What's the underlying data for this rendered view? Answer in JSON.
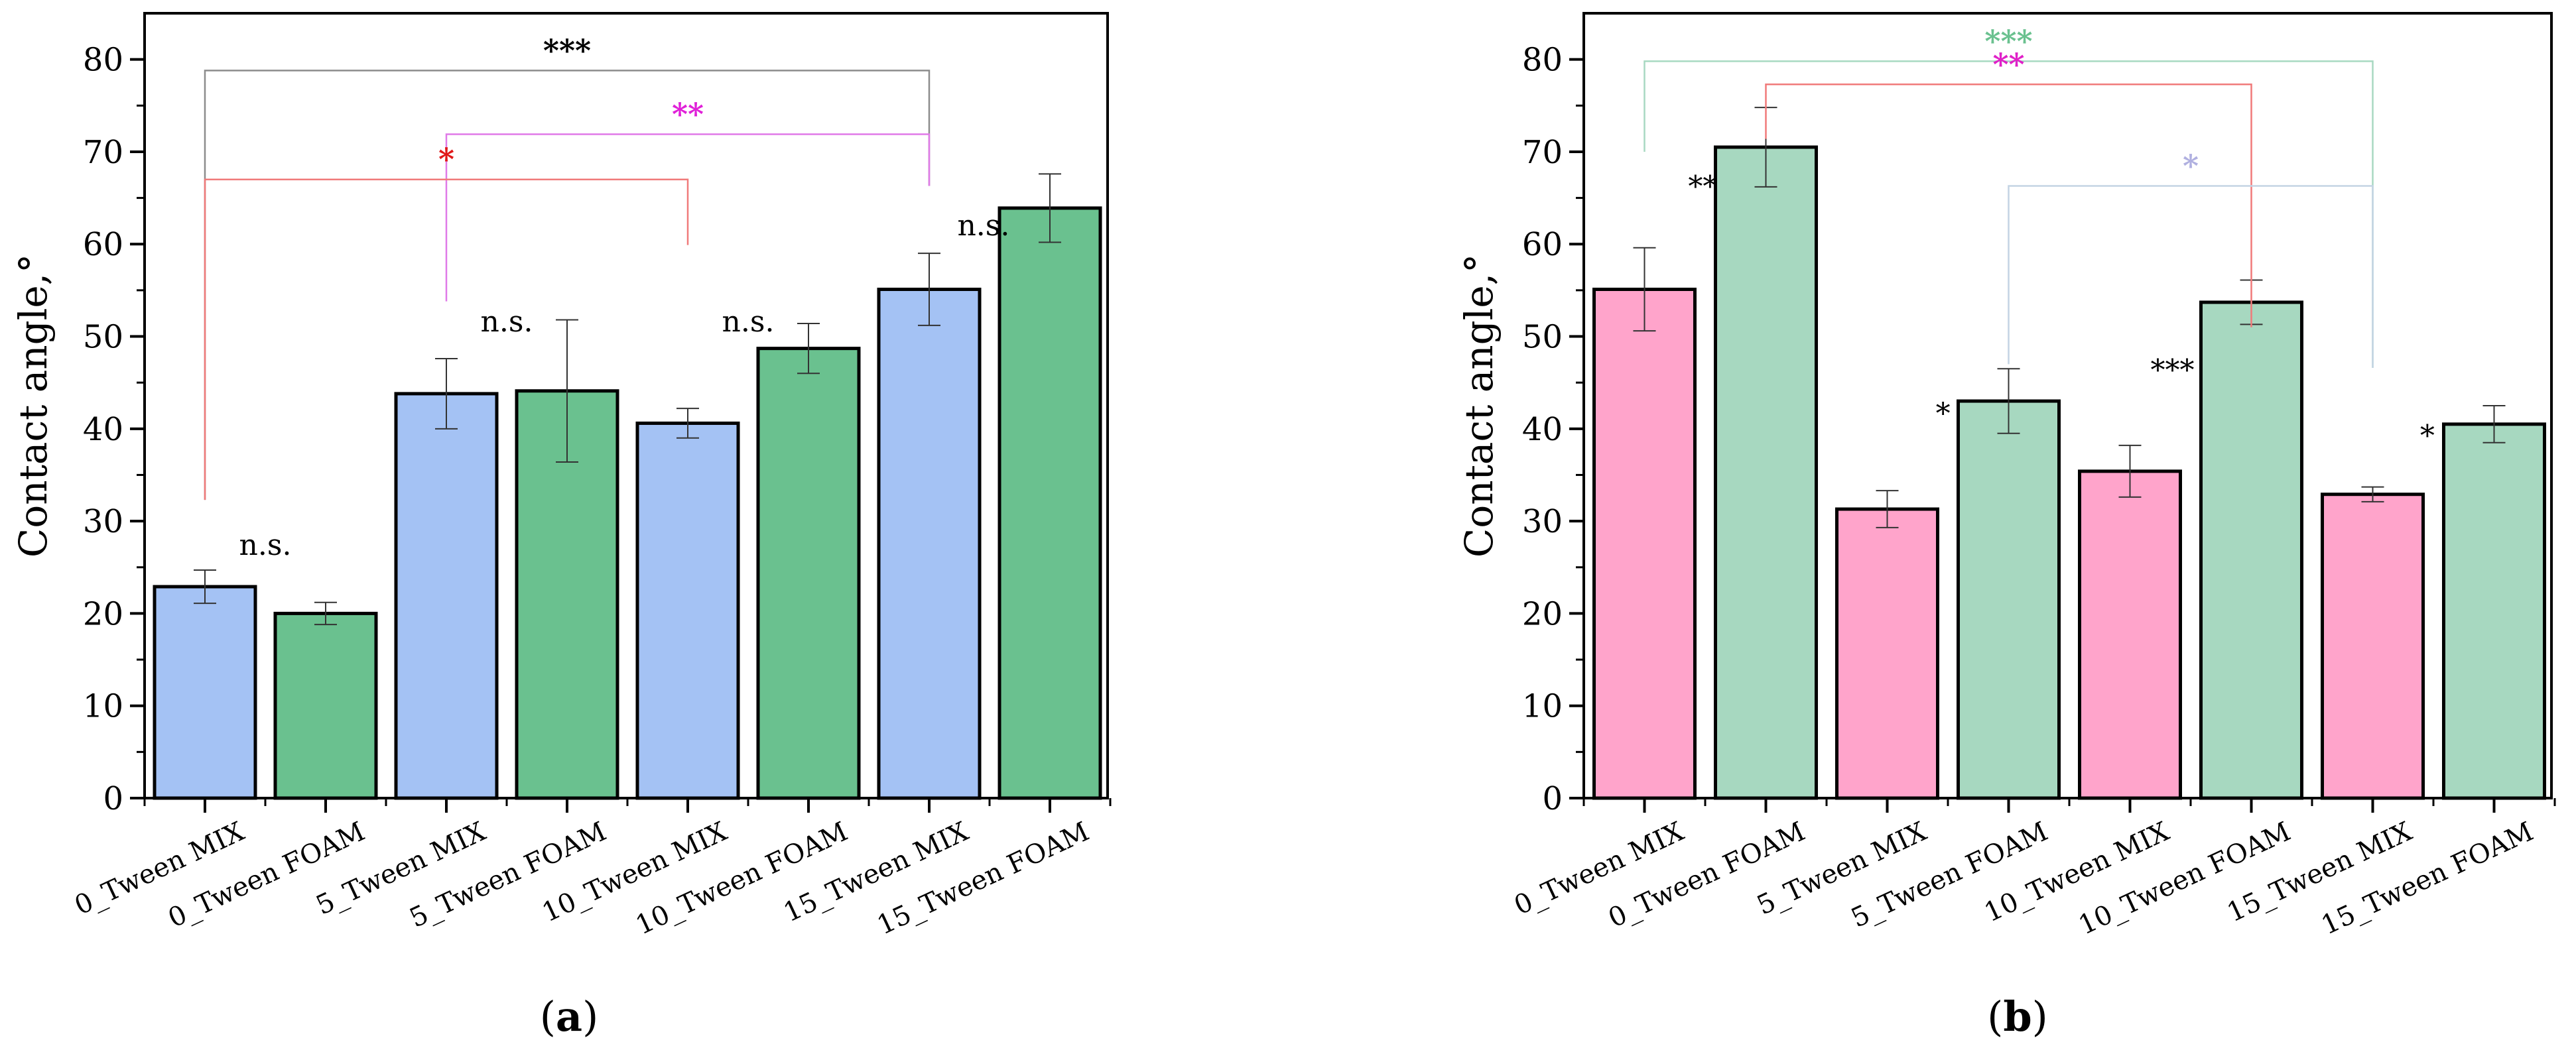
{
  "chart_data": [
    {
      "type": "bar",
      "panel_label": "(a)",
      "panel_letter": "a",
      "ylabel": "Contact angle,°",
      "ylim": [
        0,
        85
      ],
      "yticks": [
        "0",
        "10",
        "20",
        "30",
        "40",
        "50",
        "60",
        "70",
        "80"
      ],
      "categories": [
        "0_Tween MIX",
        "0_Tween FOAM",
        "5_Tween MIX",
        "5_Tween FOAM",
        "10_Tween MIX",
        "10_Tween FOAM",
        "15_Tween MIX",
        "15_Tween FOAM"
      ],
      "values": [
        22.9,
        20.0,
        43.8,
        44.1,
        40.6,
        48.7,
        55.1,
        63.9
      ],
      "errors": [
        1.8,
        1.2,
        3.8,
        7.7,
        1.6,
        2.7,
        3.9,
        3.7
      ],
      "colors": [
        "#a4c2f4",
        "#6ac18f",
        "#a4c2f4",
        "#6ac18f",
        "#a4c2f4",
        "#6ac18f",
        "#a4c2f4",
        "#6ac18f"
      ],
      "brackets": [
        {
          "from": 0,
          "to": 6,
          "level": 78.8,
          "left_end": 32.3,
          "right_end": 66.3,
          "color": "#8c8c8c",
          "label": "***",
          "label_color": "#000000"
        },
        {
          "from": 2,
          "to": 6,
          "level": 71.9,
          "left_end": 53.8,
          "right_end": 66.3,
          "color": "#e07ae8",
          "label": "**",
          "label_color": "#e020d8"
        },
        {
          "from": 0,
          "to": 4,
          "level": 67.0,
          "left_end": 32.3,
          "right_end": 59.9,
          "color": "#f07a7a",
          "label": "*",
          "label_color": "#e01818"
        }
      ],
      "annotations": [
        {
          "text": "n.s.",
          "x": 0.5,
          "y": 27.5
        },
        {
          "text": "n.s.",
          "x": 2.5,
          "y": 51.7
        },
        {
          "text": "n.s.",
          "x": 4.5,
          "y": 51.7
        },
        {
          "text": "n.s.",
          "x": 6.45,
          "y": 62.1
        }
      ]
    },
    {
      "type": "bar",
      "panel_label": "(b)",
      "panel_letter": "b",
      "ylabel": "Contact angle,°",
      "ylim": [
        0,
        85
      ],
      "yticks": [
        "0",
        "10",
        "20",
        "30",
        "40",
        "50",
        "60",
        "70",
        "80"
      ],
      "categories": [
        "0_Tween MIX",
        "0_Tween FOAM",
        "5_Tween MIX",
        "5_Tween FOAM",
        "10_Tween MIX",
        "10_Tween FOAM",
        "15_Tween MIX",
        "15_Tween FOAM"
      ],
      "values": [
        55.1,
        70.5,
        31.3,
        43.0,
        35.4,
        53.7,
        32.9,
        40.5
      ],
      "errors": [
        4.5,
        4.3,
        2.0,
        3.5,
        2.8,
        2.4,
        0.8,
        2.0
      ],
      "colors": [
        "#ffa4cb",
        "#a7d8c0",
        "#ffa4cb",
        "#a7d8c0",
        "#ffa4cb",
        "#a7d8c0",
        "#ffa4cb",
        "#a7d8c0"
      ],
      "brackets": [
        {
          "from": 0,
          "to": 6,
          "level": 79.8,
          "left_end": 70.0,
          "right_end": 46.6,
          "color": "#a8d9c2",
          "label": "***",
          "label_color": "#6ac18f"
        },
        {
          "from": 1,
          "to": 5,
          "level": 77.3,
          "left_end": 71.4,
          "right_end": 51.0,
          "color": "#f07a7a",
          "label": "**",
          "label_color": "#e020c8"
        },
        {
          "from": 3,
          "to": 6,
          "level": 66.3,
          "left_end": 47.0,
          "right_end": 46.6,
          "color": "#c4d4e4",
          "label": "*",
          "label_color": "#b0b0e0"
        }
      ],
      "annotations": [
        {
          "text": "**",
          "x": 0.48,
          "y": 66.3
        },
        {
          "text": "*",
          "x": 2.46,
          "y": 41.7
        },
        {
          "text": "***",
          "x": 4.35,
          "y": 46.4
        },
        {
          "text": "*",
          "x": 6.45,
          "y": 39.3
        }
      ]
    }
  ]
}
